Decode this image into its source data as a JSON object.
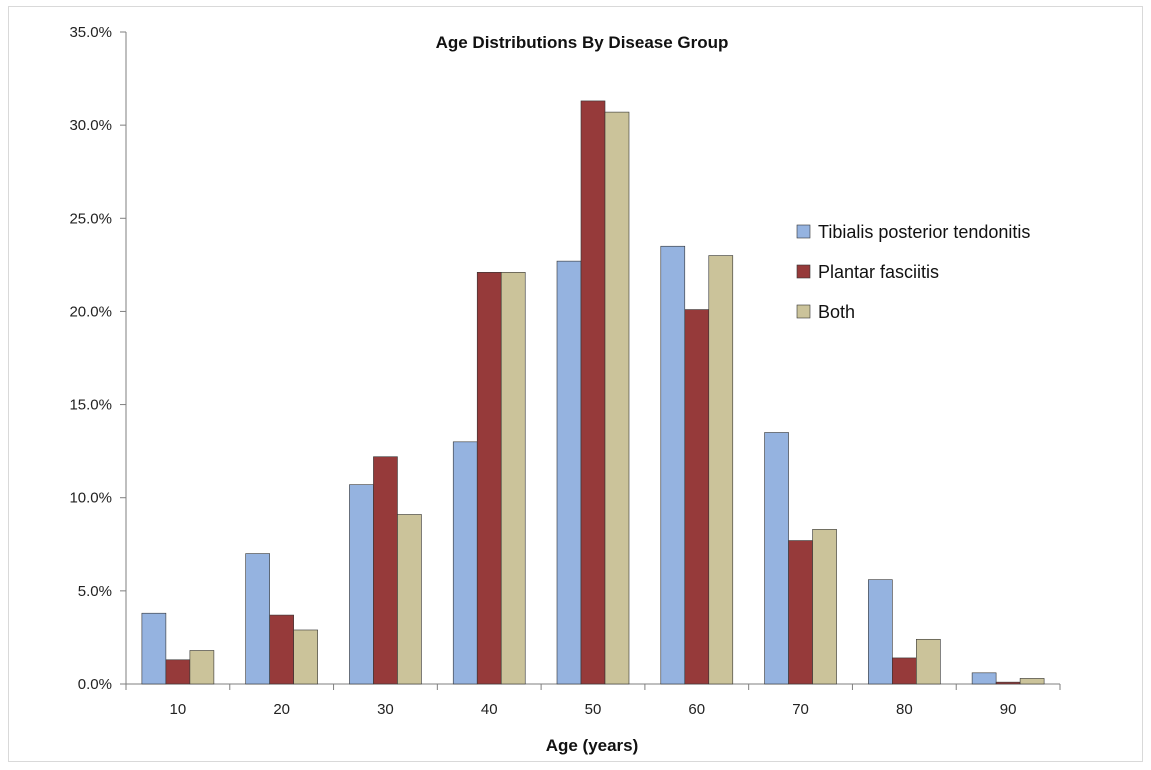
{
  "chart_data": {
    "type": "bar",
    "title": "Age Distributions By Disease Group",
    "xlabel": "Age (years)",
    "ylabel": "",
    "categories": [
      "10",
      "20",
      "30",
      "40",
      "50",
      "60",
      "70",
      "80",
      "90"
    ],
    "series": [
      {
        "name": "Tibialis posterior tendonitis",
        "color": "#95b3e0",
        "values": [
          3.8,
          7.0,
          10.7,
          13.0,
          22.7,
          23.5,
          13.5,
          5.6,
          0.6
        ]
      },
      {
        "name": "Plantar fasciitis",
        "color": "#963a3a",
        "values": [
          1.3,
          3.7,
          12.2,
          22.1,
          31.3,
          20.1,
          7.7,
          1.4,
          0.1
        ]
      },
      {
        "name": "Both",
        "color": "#cbc39a",
        "values": [
          1.8,
          2.9,
          9.1,
          22.1,
          30.7,
          23.0,
          8.3,
          2.4,
          0.3
        ]
      }
    ],
    "ylim": [
      0,
      35
    ],
    "yticks": [
      0,
      5,
      10,
      15,
      20,
      25,
      30,
      35
    ],
    "ytick_labels": [
      "0.0%",
      "5.0%",
      "10.0%",
      "15.0%",
      "20.0%",
      "25.0%",
      "30.0%",
      "35.0%"
    ],
    "grid": false,
    "legend_position": "right"
  }
}
